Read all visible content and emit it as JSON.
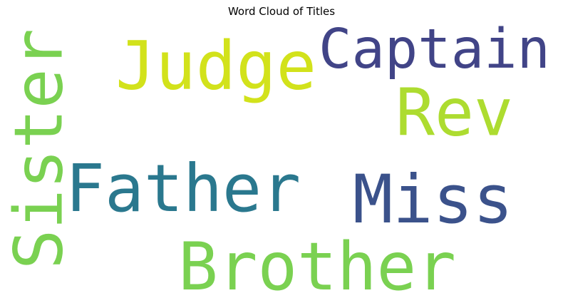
{
  "chart_data": {
    "type": "wordcloud",
    "title": "Word Cloud of Titles",
    "colormap": "viridis",
    "words": [
      {
        "text": "Brother",
        "weight": 0.95,
        "color": "#7ad151",
        "orientation": "horizontal"
      },
      {
        "text": "Father",
        "weight": 0.95,
        "color": "#2a788e",
        "orientation": "horizontal"
      },
      {
        "text": "Miss",
        "weight": 0.93,
        "color": "#3b528b",
        "orientation": "horizontal"
      },
      {
        "text": "Judge",
        "weight": 0.9,
        "color": "#d2e21b",
        "orientation": "horizontal"
      },
      {
        "text": "Captain",
        "weight": 0.8,
        "color": "#414487",
        "orientation": "horizontal"
      },
      {
        "text": "Rev",
        "weight": 0.88,
        "color": "#addc30",
        "orientation": "horizontal"
      },
      {
        "text": "Sister",
        "weight": 0.82,
        "color": "#7ad151",
        "orientation": "vertical"
      }
    ]
  }
}
